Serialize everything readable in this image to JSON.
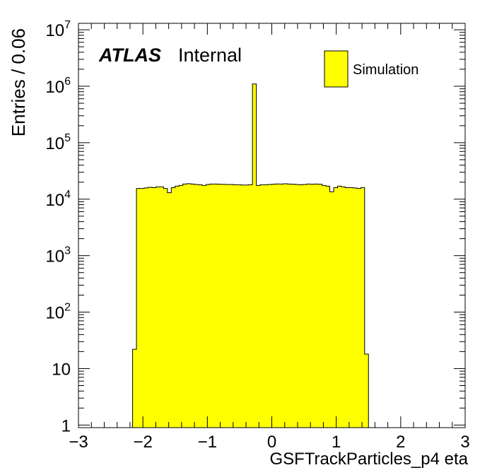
{
  "chart_data": {
    "type": "bar",
    "xlabel": "GSFTrackParticles_p4 eta",
    "ylabel": "Entries / 0.06",
    "xlim": [
      -3,
      3
    ],
    "ylim": [
      0.9,
      13000000
    ],
    "yscale": "log",
    "bin_width": 0.06,
    "x_ticks": [
      -3,
      -2,
      -1,
      0,
      1,
      2,
      3
    ],
    "x_tick_labels": [
      "−3",
      "−2",
      "−1",
      "0",
      "1",
      "2",
      "3"
    ],
    "y_ticks": [
      1,
      10,
      100,
      1000,
      10000,
      100000,
      1000000,
      10000000
    ],
    "y_tick_labels": [
      {
        "base": "1",
        "exp": ""
      },
      {
        "base": "10",
        "exp": ""
      },
      {
        "base": "10",
        "exp": "2"
      },
      {
        "base": "10",
        "exp": "3"
      },
      {
        "base": "10",
        "exp": "4"
      },
      {
        "base": "10",
        "exp": "5"
      },
      {
        "base": "10",
        "exp": "6"
      },
      {
        "base": "10",
        "exp": "7"
      }
    ],
    "bin_edges_start": -2.16,
    "values": [
      22,
      15500,
      15500,
      15800,
      16200,
      16000,
      16500,
      16500,
      15500,
      13000,
      16000,
      17000,
      17500,
      18500,
      18800,
      18500,
      18200,
      18000,
      17500,
      18200,
      18500,
      18500,
      18400,
      18300,
      18200,
      18200,
      18000,
      18000,
      17800,
      17800,
      18000,
      1100000,
      17500,
      18000,
      18000,
      18200,
      18400,
      18600,
      18500,
      18700,
      18500,
      18400,
      18200,
      18000,
      18200,
      18500,
      18400,
      18500,
      18400,
      17500,
      17000,
      13500,
      16000,
      17000,
      16500,
      16000,
      16000,
      15800,
      15500,
      16000,
      18
    ],
    "fill_color": "#ffff00",
    "line_color": "#000000",
    "legend": {
      "entries": [
        "Simulation"
      ],
      "placement": "top-right"
    },
    "atlas_label": "ATLAS",
    "atlas_status": "Internal",
    "grid": false
  }
}
